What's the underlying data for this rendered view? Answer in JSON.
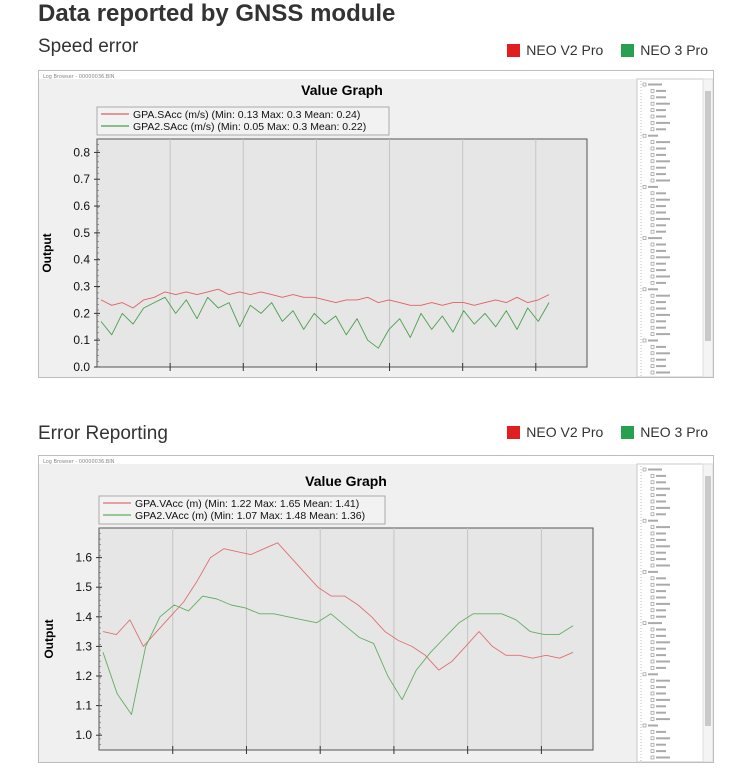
{
  "page_title": "Data reported by GNSS module",
  "sections": [
    {
      "label": "Speed error",
      "window_title": "Log Browser - 00000036.BIN",
      "legend": [
        {
          "label": "NEO V2  Pro",
          "color": "#e02020"
        },
        {
          "label": "NEO 3 Pro",
          "color": "#27a050"
        }
      ]
    },
    {
      "label": "Error Reporting",
      "window_title": "Log Browser - 00000036.BIN",
      "legend": [
        {
          "label": "NEO V2  Pro",
          "color": "#e02020"
        },
        {
          "label": "NEO 3 Pro",
          "color": "#27a050"
        }
      ]
    }
  ],
  "chart_data": [
    {
      "type": "line",
      "title": "Value Graph",
      "ylabel": "Output",
      "ylim": [
        0,
        0.85
      ],
      "yticks": [
        "0.8",
        "0.7",
        "0.6",
        "0.5",
        "0.4",
        "0.3",
        "0.2",
        "0.1",
        "0.0"
      ],
      "series": [
        {
          "name": "GPA.SAcc (m/s) (Min: 0.13 Max: 0.3 Mean: 0.24)",
          "color": "#e06060",
          "values": [
            0.25,
            0.23,
            0.24,
            0.22,
            0.25,
            0.26,
            0.28,
            0.27,
            0.28,
            0.27,
            0.28,
            0.29,
            0.27,
            0.28,
            0.27,
            0.28,
            0.27,
            0.26,
            0.27,
            0.26,
            0.26,
            0.25,
            0.24,
            0.25,
            0.25,
            0.26,
            0.24,
            0.25,
            0.24,
            0.23,
            0.23,
            0.24,
            0.23,
            0.24,
            0.24,
            0.23,
            0.24,
            0.25,
            0.24,
            0.26,
            0.24,
            0.25,
            0.27
          ]
        },
        {
          "name": "GPA2.SAcc (m/s) (Min: 0.05 Max: 0.3 Mean: 0.22)",
          "color": "#4aa04a",
          "values": [
            0.17,
            0.12,
            0.2,
            0.16,
            0.22,
            0.24,
            0.26,
            0.2,
            0.25,
            0.18,
            0.26,
            0.22,
            0.24,
            0.15,
            0.23,
            0.2,
            0.24,
            0.17,
            0.21,
            0.14,
            0.2,
            0.16,
            0.19,
            0.12,
            0.18,
            0.1,
            0.07,
            0.14,
            0.18,
            0.11,
            0.2,
            0.14,
            0.19,
            0.13,
            0.21,
            0.16,
            0.2,
            0.15,
            0.21,
            0.14,
            0.22,
            0.17,
            0.24
          ]
        }
      ]
    },
    {
      "type": "line",
      "title": "Value Graph",
      "ylabel": "Output",
      "ylim": [
        0.95,
        1.7
      ],
      "yticks": [
        "1.6",
        "1.5",
        "1.4",
        "1.3",
        "1.2",
        "1.1",
        "1.0"
      ],
      "series": [
        {
          "name": "GPA.VAcc (m) (Min: 1.22 Max: 1.65 Mean: 1.41)",
          "color": "#e07070",
          "values": [
            1.35,
            1.34,
            1.39,
            1.3,
            1.35,
            1.4,
            1.45,
            1.52,
            1.6,
            1.63,
            1.62,
            1.61,
            1.63,
            1.65,
            1.6,
            1.55,
            1.5,
            1.47,
            1.47,
            1.44,
            1.4,
            1.35,
            1.32,
            1.3,
            1.27,
            1.22,
            1.25,
            1.3,
            1.35,
            1.3,
            1.27,
            1.27,
            1.26,
            1.27,
            1.26,
            1.28
          ]
        },
        {
          "name": "GPA2.VAcc (m) (Min: 1.07 Max: 1.48 Mean: 1.36)",
          "color": "#60b060",
          "values": [
            1.28,
            1.14,
            1.07,
            1.3,
            1.4,
            1.44,
            1.42,
            1.47,
            1.46,
            1.44,
            1.43,
            1.41,
            1.41,
            1.4,
            1.39,
            1.38,
            1.41,
            1.37,
            1.33,
            1.31,
            1.2,
            1.12,
            1.22,
            1.28,
            1.33,
            1.38,
            1.41,
            1.41,
            1.41,
            1.39,
            1.35,
            1.34,
            1.34,
            1.37
          ]
        }
      ]
    }
  ]
}
